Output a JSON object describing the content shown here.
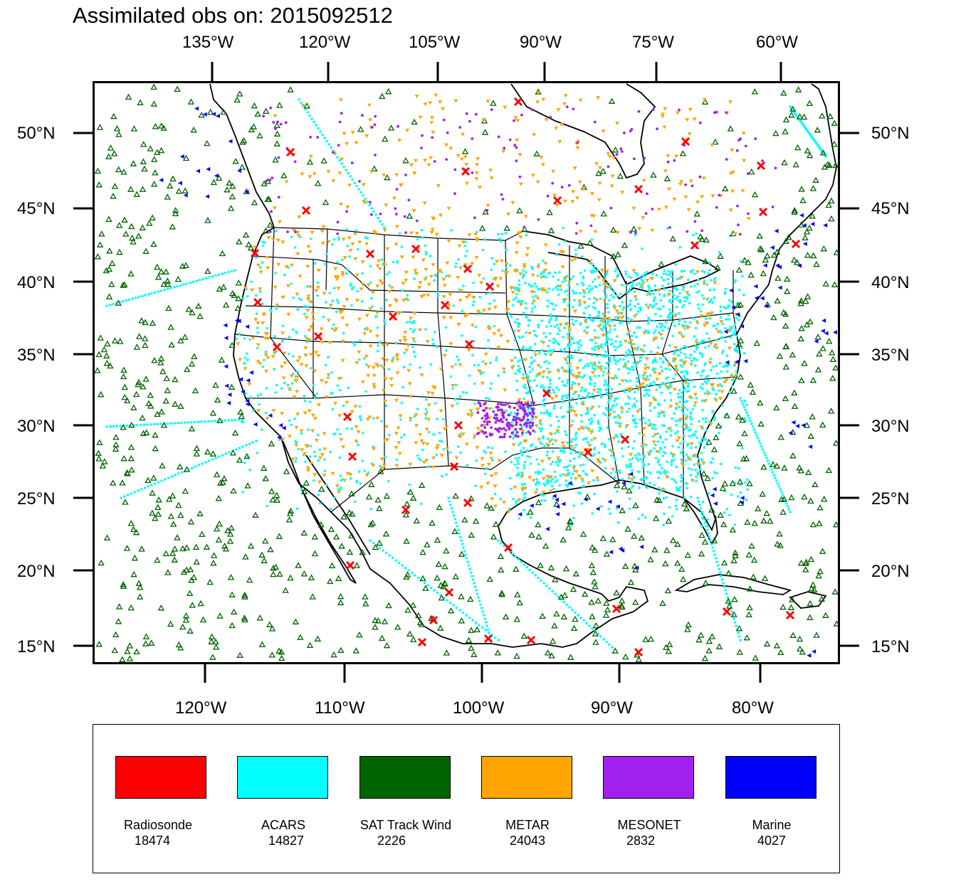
{
  "title": "Assimilated obs on: 2015092512",
  "top_axis_labels": [
    "135°W",
    "120°W",
    "105°W",
    "90°W",
    "75°W",
    "60°W"
  ],
  "bottom_axis_labels": [
    "120°W",
    "110°W",
    "100°W",
    "90°W",
    "80°W"
  ],
  "lat_labels": [
    "50°N",
    "45°N",
    "40°N",
    "35°N",
    "30°N",
    "25°N",
    "20°N",
    "15°N"
  ],
  "legend": [
    {
      "label": "Radiosonde",
      "count": "18474",
      "color": "#ff0000"
    },
    {
      "label": "ACARS",
      "count": "14827",
      "color": "#00ffff"
    },
    {
      "label": "SAT Track Wind",
      "count": "2226",
      "color": "#006400"
    },
    {
      "label": "METAR",
      "count": "24043",
      "color": "#ffa500"
    },
    {
      "label": "MESONET",
      "count": "2832",
      "color": "#a020f0"
    },
    {
      "label": "Marine",
      "count": "4027",
      "color": "#0000ff"
    }
  ]
}
